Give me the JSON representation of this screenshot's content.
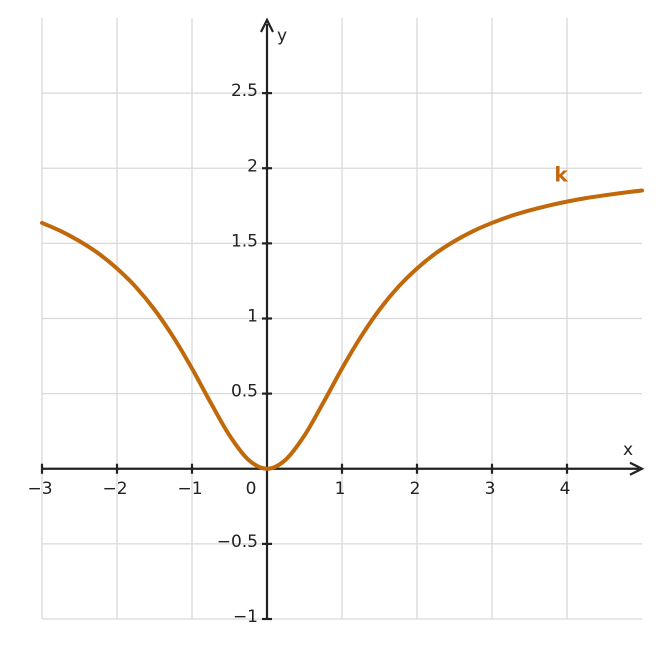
{
  "chart_data": {
    "type": "line",
    "xlabel": "x",
    "ylabel": "y",
    "x": [
      -3,
      -2.75,
      -2.5,
      -2.25,
      -2,
      -1.75,
      -1.5,
      -1.25,
      -1,
      -0.75,
      -0.5,
      -0.25,
      0,
      0.25,
      0.5,
      0.75,
      1,
      1.25,
      1.5,
      1.75,
      2,
      2.25,
      2.5,
      2.75,
      3,
      3.25,
      3.5,
      3.75,
      4,
      4.25,
      4.5,
      4.75,
      5
    ],
    "series": [
      {
        "name": "k",
        "color": "#c0680a",
        "values": [
          1.636,
          1.582,
          1.515,
          1.434,
          1.333,
          1.21,
          1.059,
          0.877,
          0.667,
          0.439,
          0.222,
          0.061,
          0,
          0.061,
          0.222,
          0.439,
          0.667,
          0.877,
          1.059,
          1.21,
          1.333,
          1.434,
          1.515,
          1.582,
          1.636,
          1.682,
          1.719,
          1.751,
          1.778,
          1.801,
          1.82,
          1.837,
          1.852
        ]
      }
    ],
    "xlim": [
      -3,
      5
    ],
    "ylim": [
      -1,
      3
    ],
    "xticks": [
      {
        "value": -3,
        "label": "−3"
      },
      {
        "value": -2,
        "label": "−2"
      },
      {
        "value": -1,
        "label": "−1"
      },
      0,
      1,
      2,
      3,
      4
    ],
    "yticks": [
      {
        "value": -1,
        "label": "−1"
      },
      {
        "value": -0.5,
        "label": "−0.5"
      },
      0.5,
      1,
      1.5,
      2,
      2.5
    ],
    "grid": true
  }
}
